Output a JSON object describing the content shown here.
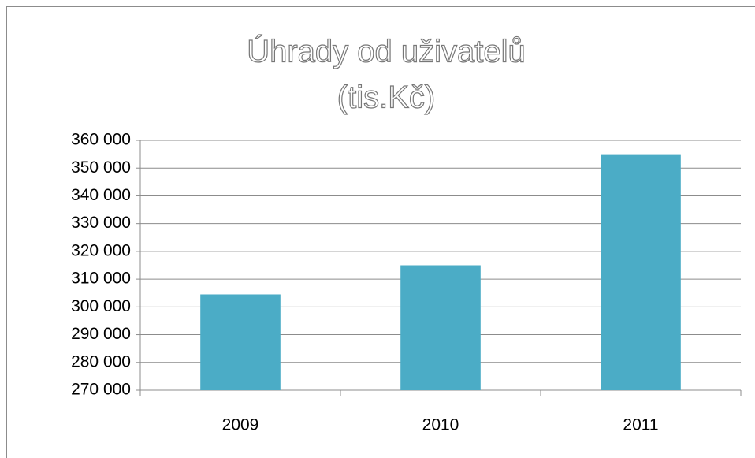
{
  "chart_data": {
    "type": "bar",
    "title": "Úhrady od uživatelů",
    "subtitle": "(tis.Kč)",
    "categories": [
      "2009",
      "2010",
      "2011"
    ],
    "values": [
      304500,
      315000,
      355000
    ],
    "color": "#4bacc6",
    "ylim": [
      270000,
      360000
    ],
    "yticks": [
      {
        "value": 270000,
        "label": "270 000"
      },
      {
        "value": 280000,
        "label": "280 000"
      },
      {
        "value": 290000,
        "label": "290 000"
      },
      {
        "value": 300000,
        "label": "300 000"
      },
      {
        "value": 310000,
        "label": "310 000"
      },
      {
        "value": 320000,
        "label": "320 000"
      },
      {
        "value": 330000,
        "label": "330 000"
      },
      {
        "value": 340000,
        "label": "340 000"
      },
      {
        "value": 350000,
        "label": "350 000"
      },
      {
        "value": 360000,
        "label": "360 000"
      }
    ],
    "grid": true
  }
}
